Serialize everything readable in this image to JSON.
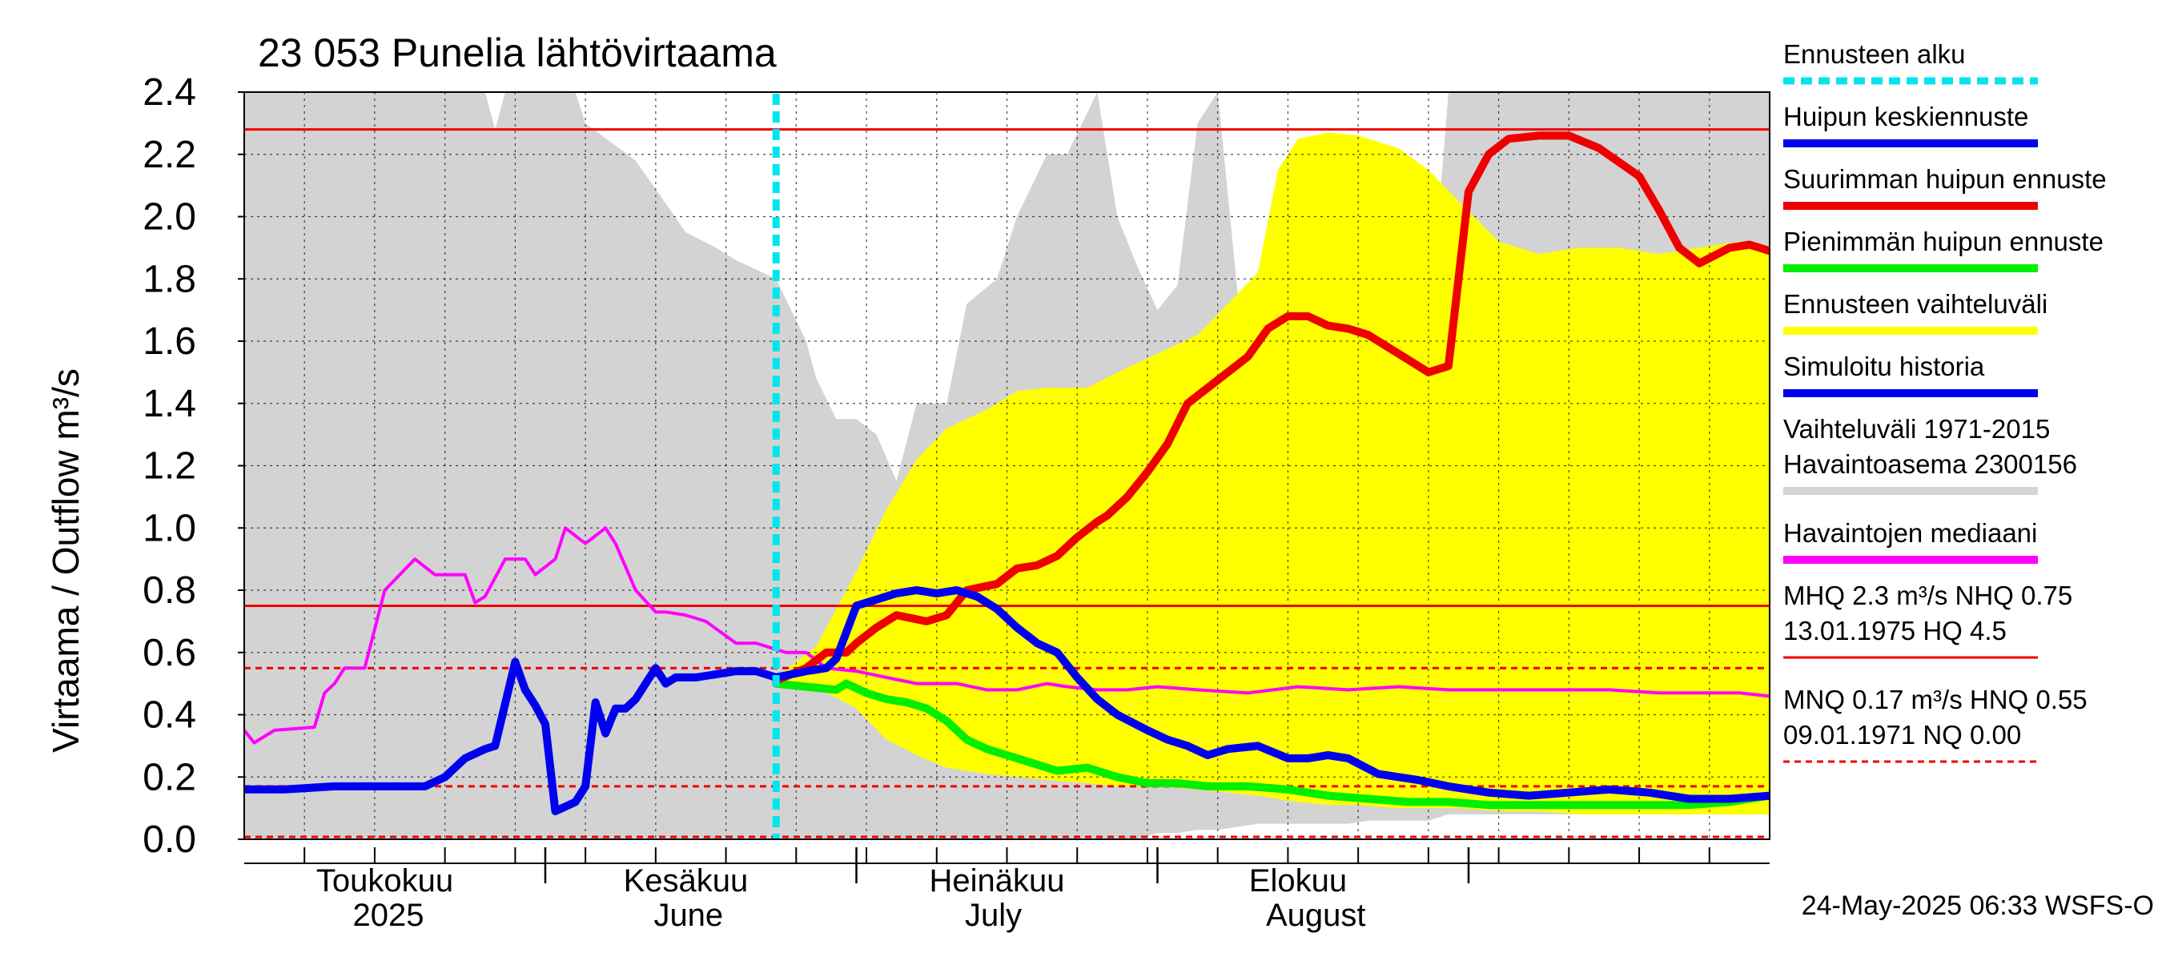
{
  "chart_data": {
    "type": "line",
    "title": "23 053 Punelia lähtövirtaama",
    "ylabel": "Virtaama / Outflow    m³/s",
    "ylim": [
      0,
      2.4
    ],
    "yticks": [
      "0.0",
      "0.2",
      "0.4",
      "0.6",
      "0.8",
      "1.0",
      "1.2",
      "1.4",
      "1.6",
      "1.8",
      "2.0",
      "2.2",
      "2.4"
    ],
    "xlim": [
      "2025-04-01",
      "2025-08-31"
    ],
    "grid": true,
    "legend_position": "right",
    "month_labels": [
      {
        "date": "2025-04-15",
        "line1": "Toukokuu",
        "line2": "2025"
      },
      {
        "date": "2025-05-15",
        "line1": "Kesäkuu",
        "line2": "June"
      },
      {
        "date": "2025-06-15",
        "line1": "Heinäkuu",
        "line2": "July"
      },
      {
        "date": "2025-07-15",
        "line1": "Elokuu",
        "line2": "August"
      }
    ],
    "forecast_start": "2025-05-24",
    "reference_lines": {
      "MHQ": 2.28,
      "NHQ": 0.75,
      "HNQ": 0.55,
      "MNQ": 0.17,
      "NQ": 0.0
    },
    "colors": {
      "forecast_start": "#00e5ee",
      "mean_peak": "#0000ee",
      "max_peak": "#ee0000",
      "min_peak": "#00ee00",
      "forecast_range": "#ffff00",
      "history_range": "#d3d3d3",
      "median": "#ff00ff",
      "hq_line": "#ee0000"
    },
    "series": [
      {
        "name": "Vaihteluväli 1971-2015",
        "kind": "band",
        "x": [
          "2025-04-01",
          "2025-04-25",
          "2025-04-26",
          "2025-04-27",
          "2025-05-01",
          "2025-05-04",
          "2025-05-05",
          "2025-05-10",
          "2025-05-15",
          "2025-05-18",
          "2025-05-20",
          "2025-05-24",
          "2025-05-27",
          "2025-05-28",
          "2025-05-30",
          "2025-06-01",
          "2025-06-03",
          "2025-06-05",
          "2025-06-07",
          "2025-06-10",
          "2025-06-12",
          "2025-06-15",
          "2025-06-17",
          "2025-06-20",
          "2025-06-22",
          "2025-06-25",
          "2025-06-27",
          "2025-06-29",
          "2025-07-01",
          "2025-07-03",
          "2025-07-05",
          "2025-07-07",
          "2025-07-09",
          "2025-07-11",
          "2025-07-13",
          "2025-07-15",
          "2025-07-18",
          "2025-07-20",
          "2025-07-22",
          "2025-07-25",
          "2025-07-28",
          "2025-07-30",
          "2025-08-01",
          "2025-08-05",
          "2025-08-08",
          "2025-08-10",
          "2025-08-14",
          "2025-08-18",
          "2025-08-21",
          "2025-08-25",
          "2025-08-28",
          "2025-08-31"
        ],
        "upper": [
          2.4,
          2.4,
          2.28,
          2.4,
          2.4,
          2.4,
          2.3,
          2.18,
          1.95,
          1.9,
          1.86,
          1.8,
          1.6,
          1.48,
          1.35,
          1.35,
          1.3,
          1.15,
          1.4,
          1.4,
          1.72,
          1.8,
          2.0,
          2.2,
          2.2,
          2.4,
          2.0,
          1.84,
          1.7,
          1.78,
          2.3,
          2.4,
          1.75,
          1.62,
          1.7,
          1.78,
          2.1,
          2.1,
          1.62,
          1.68,
          1.6,
          2.4,
          2.4,
          2.4,
          2.4,
          2.4,
          2.4,
          2.4,
          2.4,
          2.4,
          2.4,
          2.4
        ],
        "lower": [
          0.0,
          0.0,
          0.0,
          0.0,
          0.0,
          0.0,
          0.0,
          0.0,
          0.0,
          0.0,
          0.0,
          0.0,
          0.0,
          0.0,
          0.0,
          0.0,
          0.0,
          0.0,
          0.0,
          0.0,
          0.0,
          0.0,
          0.0,
          0.0,
          0.0,
          0.0,
          0.0,
          0.0,
          0.02,
          0.02,
          0.03,
          0.03,
          0.04,
          0.05,
          0.05,
          0.05,
          0.05,
          0.05,
          0.06,
          0.06,
          0.06,
          0.08,
          0.08,
          0.08,
          0.08,
          0.08,
          0.08,
          0.08,
          0.08,
          0.08,
          0.08,
          0.08
        ]
      },
      {
        "name": "Ennusteen vaihteluväli",
        "kind": "band",
        "x": [
          "2025-05-24",
          "2025-05-28",
          "2025-06-01",
          "2025-06-04",
          "2025-06-07",
          "2025-06-10",
          "2025-06-14",
          "2025-06-17",
          "2025-06-20",
          "2025-06-24",
          "2025-06-27",
          "2025-07-01",
          "2025-07-05",
          "2025-07-08",
          "2025-07-11",
          "2025-07-13",
          "2025-07-15",
          "2025-07-18",
          "2025-07-21",
          "2025-07-25",
          "2025-07-28",
          "2025-07-31",
          "2025-08-04",
          "2025-08-08",
          "2025-08-12",
          "2025-08-16",
          "2025-08-20",
          "2025-08-24",
          "2025-08-28",
          "2025-08-31"
        ],
        "upper": [
          0.52,
          0.62,
          0.86,
          1.06,
          1.22,
          1.32,
          1.38,
          1.44,
          1.45,
          1.45,
          1.5,
          1.56,
          1.62,
          1.72,
          1.82,
          2.15,
          2.25,
          2.27,
          2.26,
          2.22,
          2.15,
          2.05,
          1.92,
          1.88,
          1.9,
          1.9,
          1.88,
          1.9,
          1.92,
          1.9
        ],
        "lower": [
          0.5,
          0.49,
          0.42,
          0.32,
          0.27,
          0.23,
          0.21,
          0.2,
          0.19,
          0.18,
          0.17,
          0.17,
          0.16,
          0.15,
          0.14,
          0.13,
          0.12,
          0.11,
          0.11,
          0.1,
          0.1,
          0.1,
          0.09,
          0.09,
          0.08,
          0.08,
          0.08,
          0.08,
          0.08,
          0.08
        ]
      },
      {
        "name": "Havaintojen mediaani",
        "kind": "line",
        "x": [
          "2025-04-01",
          "2025-04-02",
          "2025-04-04",
          "2025-04-08",
          "2025-04-09",
          "2025-04-10",
          "2025-04-11",
          "2025-04-13",
          "2025-04-15",
          "2025-04-18",
          "2025-04-20",
          "2025-04-23",
          "2025-04-24",
          "2025-04-25",
          "2025-04-27",
          "2025-04-29",
          "2025-04-30",
          "2025-05-02",
          "2025-05-03",
          "2025-05-05",
          "2025-05-07",
          "2025-05-08",
          "2025-05-10",
          "2025-05-12",
          "2025-05-13",
          "2025-05-15",
          "2025-05-17",
          "2025-05-20",
          "2025-05-22",
          "2025-05-25",
          "2025-05-27",
          "2025-05-29",
          "2025-06-01",
          "2025-06-04",
          "2025-06-07",
          "2025-06-09",
          "2025-06-11",
          "2025-06-14",
          "2025-06-17",
          "2025-06-20",
          "2025-06-22",
          "2025-06-25",
          "2025-06-28",
          "2025-07-01",
          "2025-07-05",
          "2025-07-10",
          "2025-07-15",
          "2025-07-20",
          "2025-07-25",
          "2025-07-30",
          "2025-08-05",
          "2025-08-10",
          "2025-08-15",
          "2025-08-20",
          "2025-08-25",
          "2025-08-28",
          "2025-08-31"
        ],
        "values": [
          0.35,
          0.31,
          0.35,
          0.36,
          0.47,
          0.5,
          0.55,
          0.55,
          0.8,
          0.9,
          0.85,
          0.85,
          0.76,
          0.78,
          0.9,
          0.9,
          0.85,
          0.9,
          1.0,
          0.95,
          1.0,
          0.95,
          0.8,
          0.73,
          0.73,
          0.72,
          0.7,
          0.63,
          0.63,
          0.6,
          0.6,
          0.55,
          0.54,
          0.52,
          0.5,
          0.5,
          0.5,
          0.48,
          0.48,
          0.5,
          0.49,
          0.48,
          0.48,
          0.49,
          0.48,
          0.47,
          0.49,
          0.48,
          0.49,
          0.48,
          0.48,
          0.48,
          0.48,
          0.47,
          0.47,
          0.47,
          0.46
        ]
      },
      {
        "name": "Suurimman huipun ennuste",
        "kind": "line",
        "x": [
          "2025-05-24",
          "2025-05-27",
          "2025-05-29",
          "2025-05-31",
          "2025-06-01",
          "2025-06-03",
          "2025-06-05",
          "2025-06-08",
          "2025-06-10",
          "2025-06-12",
          "2025-06-15",
          "2025-06-17",
          "2025-06-19",
          "2025-06-21",
          "2025-06-23",
          "2025-06-25",
          "2025-06-26",
          "2025-06-28",
          "2025-06-30",
          "2025-07-02",
          "2025-07-04",
          "2025-07-06",
          "2025-07-08",
          "2025-07-10",
          "2025-07-12",
          "2025-07-14",
          "2025-07-16",
          "2025-07-18",
          "2025-07-20",
          "2025-07-22",
          "2025-07-24",
          "2025-07-26",
          "2025-07-28",
          "2025-07-30",
          "2025-08-01",
          "2025-08-03",
          "2025-08-05",
          "2025-08-08",
          "2025-08-11",
          "2025-08-14",
          "2025-08-18",
          "2025-08-20",
          "2025-08-22",
          "2025-08-24",
          "2025-08-27",
          "2025-08-29",
          "2025-08-31"
        ],
        "values": [
          0.51,
          0.55,
          0.6,
          0.6,
          0.63,
          0.68,
          0.72,
          0.7,
          0.72,
          0.8,
          0.82,
          0.87,
          0.88,
          0.91,
          0.97,
          1.02,
          1.04,
          1.1,
          1.18,
          1.27,
          1.4,
          1.45,
          1.5,
          1.55,
          1.64,
          1.68,
          1.68,
          1.65,
          1.64,
          1.62,
          1.58,
          1.54,
          1.5,
          1.52,
          2.08,
          2.2,
          2.25,
          2.26,
          2.26,
          2.22,
          2.13,
          2.02,
          1.9,
          1.85,
          1.9,
          1.91,
          1.89
        ]
      },
      {
        "name": "Pienimmän huipun ennuste",
        "kind": "line",
        "x": [
          "2025-05-24",
          "2025-05-27",
          "2025-05-30",
          "2025-05-31",
          "2025-06-02",
          "2025-06-04",
          "2025-06-06",
          "2025-06-08",
          "2025-06-10",
          "2025-06-12",
          "2025-06-14",
          "2025-06-16",
          "2025-06-19",
          "2025-06-21",
          "2025-06-24",
          "2025-06-27",
          "2025-06-30",
          "2025-07-03",
          "2025-07-06",
          "2025-07-10",
          "2025-07-14",
          "2025-07-18",
          "2025-07-22",
          "2025-07-26",
          "2025-07-30",
          "2025-08-03",
          "2025-08-07",
          "2025-08-11",
          "2025-08-15",
          "2025-08-19",
          "2025-08-23",
          "2025-08-27",
          "2025-08-31"
        ],
        "values": [
          0.5,
          0.49,
          0.48,
          0.5,
          0.47,
          0.45,
          0.44,
          0.42,
          0.38,
          0.32,
          0.29,
          0.27,
          0.24,
          0.22,
          0.23,
          0.2,
          0.18,
          0.18,
          0.17,
          0.17,
          0.16,
          0.14,
          0.13,
          0.12,
          0.12,
          0.11,
          0.11,
          0.11,
          0.11,
          0.11,
          0.11,
          0.12,
          0.14
        ]
      },
      {
        "name": "Huipun keskiennuste",
        "kind": "line",
        "x": [
          "2025-05-24",
          "2025-05-27",
          "2025-05-29",
          "2025-05-30",
          "2025-06-01",
          "2025-06-03",
          "2025-06-05",
          "2025-06-07",
          "2025-06-09",
          "2025-06-11",
          "2025-06-13",
          "2025-06-15",
          "2025-06-17",
          "2025-06-19",
          "2025-06-21",
          "2025-06-23",
          "2025-06-25",
          "2025-06-27",
          "2025-06-30",
          "2025-07-02",
          "2025-07-04",
          "2025-07-06",
          "2025-07-08",
          "2025-07-11",
          "2025-07-14",
          "2025-07-16",
          "2025-07-18",
          "2025-07-20",
          "2025-07-23",
          "2025-07-27",
          "2025-07-30",
          "2025-08-03",
          "2025-08-07",
          "2025-08-11",
          "2025-08-15",
          "2025-08-19",
          "2025-08-23",
          "2025-08-27",
          "2025-08-31"
        ],
        "values": [
          0.52,
          0.54,
          0.55,
          0.58,
          0.75,
          0.77,
          0.79,
          0.8,
          0.79,
          0.8,
          0.78,
          0.74,
          0.68,
          0.63,
          0.6,
          0.52,
          0.45,
          0.4,
          0.35,
          0.32,
          0.3,
          0.27,
          0.29,
          0.3,
          0.26,
          0.26,
          0.27,
          0.26,
          0.21,
          0.19,
          0.17,
          0.15,
          0.14,
          0.15,
          0.16,
          0.15,
          0.13,
          0.13,
          0.14
        ]
      },
      {
        "name": "Simuloitu historia",
        "kind": "line",
        "x": [
          "2025-04-01",
          "2025-04-05",
          "2025-04-10",
          "2025-04-15",
          "2025-04-19",
          "2025-04-21",
          "2025-04-23",
          "2025-04-25",
          "2025-04-26",
          "2025-04-28",
          "2025-04-29",
          "2025-04-30",
          "2025-05-01",
          "2025-05-02",
          "2025-05-04",
          "2025-05-05",
          "2025-05-06",
          "2025-05-07",
          "2025-05-08",
          "2025-05-09",
          "2025-05-10",
          "2025-05-12",
          "2025-05-13",
          "2025-05-14",
          "2025-05-16",
          "2025-05-18",
          "2025-05-20",
          "2025-05-22",
          "2025-05-24"
        ],
        "values": [
          0.16,
          0.16,
          0.17,
          0.17,
          0.17,
          0.2,
          0.26,
          0.29,
          0.3,
          0.57,
          0.48,
          0.43,
          0.37,
          0.09,
          0.12,
          0.17,
          0.44,
          0.34,
          0.42,
          0.42,
          0.45,
          0.55,
          0.5,
          0.52,
          0.52,
          0.53,
          0.54,
          0.54,
          0.52
        ]
      }
    ],
    "legend": [
      {
        "label": "Ennusteen alku",
        "style": "dotted",
        "color": "#00e5ee"
      },
      {
        "label": "Huipun keskiennuste",
        "style": "solid",
        "color": "#0000ee"
      },
      {
        "label": "Suurimman huipun ennuste",
        "style": "solid",
        "color": "#ee0000"
      },
      {
        "label": "Pienimmän huipun ennuste",
        "style": "solid",
        "color": "#00ee00"
      },
      {
        "label": "Ennusteen vaihteluväli",
        "style": "solid",
        "color": "#ffff00"
      },
      {
        "label": "Simuloitu historia",
        "style": "solid",
        "color": "#0000ee"
      },
      {
        "label": "Vaihteluväli 1971-2015",
        "label2": " Havaintoasema 2300156",
        "style": "solid",
        "color": "#d3d3d3"
      },
      {
        "label": "Havaintojen mediaani",
        "style": "solid",
        "color": "#ff00ff"
      },
      {
        "label": "MHQ  2.3 m³/s NHQ 0.75",
        "label2": "13.01.1975 HQ  4.5",
        "style": "thin",
        "color": "#ee0000"
      },
      {
        "label": "MNQ 0.17 m³/s HNQ 0.55",
        "label2": "09.01.1971 NQ 0.00",
        "style": "dashed",
        "color": "#ee0000"
      }
    ],
    "footer": "24-May-2025 06:33 WSFS-O"
  }
}
